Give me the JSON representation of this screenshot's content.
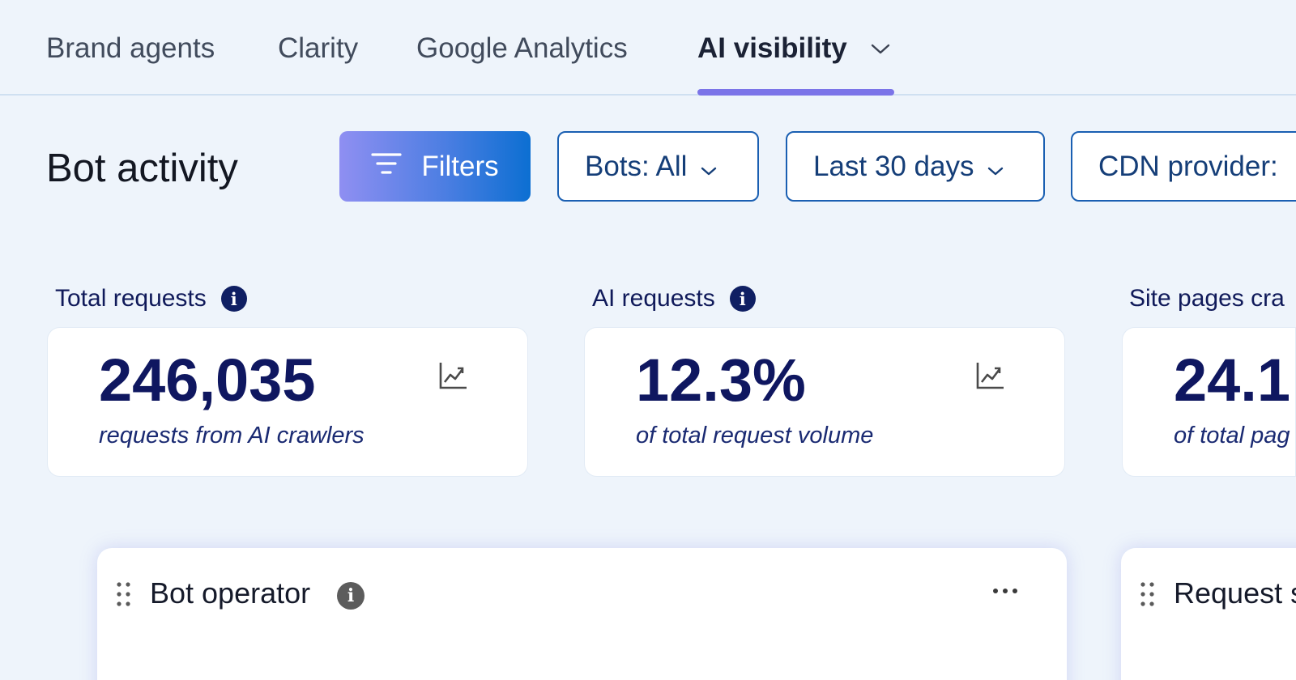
{
  "tabs": [
    {
      "label": "Brand agents",
      "active": false
    },
    {
      "label": "Clarity",
      "active": false
    },
    {
      "label": "Google Analytics",
      "active": false
    },
    {
      "label": "AI visibility",
      "active": true,
      "icon": "chevron-down-icon"
    }
  ],
  "toolbar": {
    "title": "Bot activity",
    "filters_label": "Filters",
    "filters_icon": "filter-icon",
    "bots_label": "Bots: All",
    "date_label": "Last 30 days",
    "cdn_label": "CDN provider:"
  },
  "metrics": [
    {
      "label": "Total requests",
      "value": "246,035",
      "subtitle": "requests from AI crawlers",
      "icon": "trend-chart-icon"
    },
    {
      "label": "AI requests",
      "value": "12.3%",
      "subtitle": "of total request volume",
      "icon": "trend-chart-icon"
    },
    {
      "label": "Site pages cra",
      "value": "24.1",
      "subtitle": "of total pag"
    }
  ],
  "panels": [
    {
      "title": "Bot operator",
      "icons": [
        "drag-handle-icon",
        "info-icon",
        "more-options-icon"
      ]
    },
    {
      "title": "Request s",
      "icons": [
        "drag-handle-icon"
      ]
    }
  ],
  "colors": {
    "background": "#eef4fb",
    "accent": "#7b74e8",
    "primary_button": "#0c6fd2",
    "outline": "#1a5fb2",
    "metric_text": "#0f1760"
  }
}
